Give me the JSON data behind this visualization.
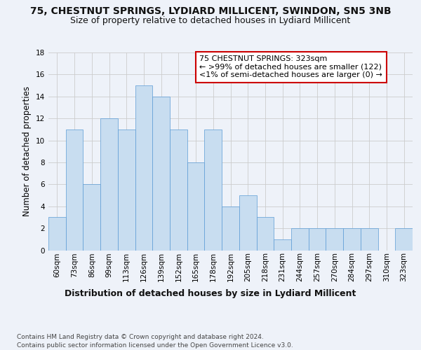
{
  "title": "75, CHESTNUT SPRINGS, LYDIARD MILLICENT, SWINDON, SN5 3NB",
  "subtitle": "Size of property relative to detached houses in Lydiard Millicent",
  "xlabel": "Distribution of detached houses by size in Lydiard Millicent",
  "ylabel": "Number of detached properties",
  "categories": [
    "60sqm",
    "73sqm",
    "86sqm",
    "99sqm",
    "113sqm",
    "126sqm",
    "139sqm",
    "152sqm",
    "165sqm",
    "178sqm",
    "192sqm",
    "205sqm",
    "218sqm",
    "231sqm",
    "244sqm",
    "257sqm",
    "270sqm",
    "284sqm",
    "297sqm",
    "310sqm",
    "323sqm"
  ],
  "values": [
    3,
    11,
    6,
    12,
    11,
    15,
    14,
    11,
    8,
    11,
    4,
    5,
    3,
    1,
    2,
    2,
    2,
    2,
    2,
    0,
    2
  ],
  "bar_color": "#c8ddf0",
  "bar_edge_color": "#5b9bd5",
  "annotation_text": "75 CHESTNUT SPRINGS: 323sqm\n← >99% of detached houses are smaller (122)\n<1% of semi-detached houses are larger (0) →",
  "annotation_box_color": "#ffffff",
  "annotation_border_color": "#cc0000",
  "ylim": [
    0,
    18
  ],
  "yticks": [
    0,
    2,
    4,
    6,
    8,
    10,
    12,
    14,
    16,
    18
  ],
  "grid_color": "#cccccc",
  "background_color": "#eef2f9",
  "plot_bg_color": "#eef2f9",
  "footer": "Contains HM Land Registry data © Crown copyright and database right 2024.\nContains public sector information licensed under the Open Government Licence v3.0.",
  "title_fontsize": 10,
  "subtitle_fontsize": 9,
  "xlabel_fontsize": 9,
  "ylabel_fontsize": 8.5,
  "tick_fontsize": 7.5,
  "annotation_fontsize": 8,
  "footer_fontsize": 6.5
}
